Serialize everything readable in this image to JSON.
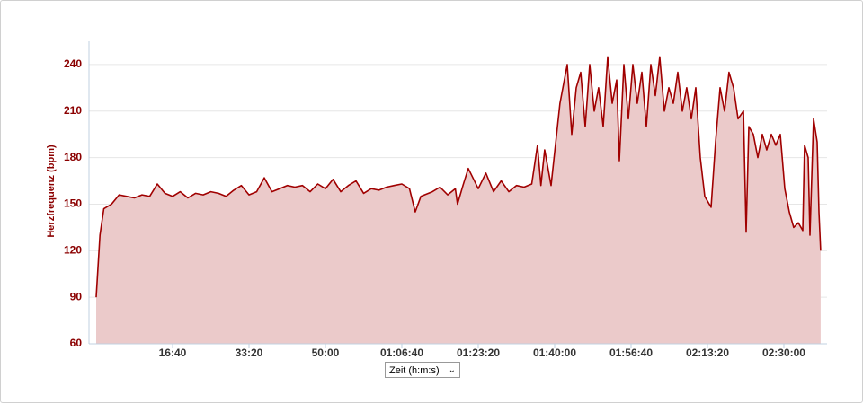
{
  "chart_data": {
    "type": "area",
    "ylabel": "Herzfrequenz (bpm)",
    "xlabel": "Zeit (h:m:s)",
    "color": "#a00000",
    "fill": "#ebcaca",
    "grid": true,
    "xlim": [
      -94,
      9565
    ],
    "ylim": [
      60,
      255
    ],
    "yticks": [
      60,
      90,
      120,
      150,
      180,
      210,
      240
    ],
    "xticks": [
      {
        "value": 1000,
        "label": "16:40"
      },
      {
        "value": 2000,
        "label": "33:20"
      },
      {
        "value": 3000,
        "label": "50:00"
      },
      {
        "value": 4000,
        "label": "01:06:40"
      },
      {
        "value": 5000,
        "label": "01:23:20"
      },
      {
        "value": 6000,
        "label": "01:40:00"
      },
      {
        "value": 7000,
        "label": "01:56:40"
      },
      {
        "value": 8000,
        "label": "02:13:20"
      },
      {
        "value": 9000,
        "label": "02:30:00"
      }
    ],
    "x": [
      0,
      50,
      100,
      200,
      300,
      400,
      500,
      600,
      700,
      800,
      900,
      1000,
      1100,
      1200,
      1300,
      1400,
      1500,
      1600,
      1700,
      1800,
      1900,
      2000,
      2100,
      2200,
      2300,
      2400,
      2500,
      2600,
      2700,
      2800,
      2900,
      3000,
      3100,
      3200,
      3300,
      3400,
      3500,
      3600,
      3700,
      3800,
      3900,
      4000,
      4100,
      4176,
      4250,
      4400,
      4500,
      4600,
      4700,
      4729,
      4800,
      4870,
      5000,
      5100,
      5200,
      5300,
      5400,
      5500,
      5600,
      5700,
      5776,
      5820,
      5870,
      5953,
      6070,
      6165,
      6224,
      6282,
      6341,
      6400,
      6459,
      6518,
      6576,
      6635,
      6694,
      6753,
      6812,
      6847,
      6906,
      6965,
      7024,
      7082,
      7141,
      7200,
      7259,
      7318,
      7376,
      7435,
      7494,
      7553,
      7612,
      7671,
      7729,
      7788,
      7847,
      7906,
      7965,
      8047,
      8106,
      8165,
      8224,
      8282,
      8341,
      8400,
      8471,
      8506,
      8541,
      8600,
      8659,
      8718,
      8776,
      8835,
      8894,
      8953,
      9012,
      9071,
      9129,
      9188,
      9247,
      9271,
      9318,
      9341,
      9388,
      9435,
      9459,
      9482
    ],
    "values": [
      90,
      130,
      147,
      150,
      156,
      155,
      154,
      156,
      155,
      163,
      157,
      155,
      158,
      154,
      157,
      156,
      158,
      157,
      155,
      159,
      162,
      156,
      158,
      167,
      158,
      160,
      162,
      161,
      162,
      158,
      163,
      160,
      166,
      158,
      162,
      165,
      157,
      160,
      159,
      161,
      162,
      163,
      160,
      145,
      155,
      158,
      161,
      156,
      160,
      150,
      162,
      173,
      160,
      170,
      158,
      165,
      158,
      162,
      161,
      163,
      188,
      162,
      185,
      162,
      215,
      240,
      195,
      225,
      235,
      200,
      240,
      210,
      225,
      200,
      245,
      215,
      230,
      178,
      240,
      205,
      240,
      215,
      235,
      200,
      240,
      220,
      245,
      210,
      225,
      215,
      235,
      210,
      225,
      205,
      225,
      180,
      155,
      148,
      190,
      225,
      210,
      235,
      225,
      205,
      210,
      132,
      200,
      195,
      180,
      195,
      185,
      195,
      188,
      195,
      160,
      145,
      135,
      138,
      133,
      188,
      180,
      130,
      205,
      190,
      145,
      120
    ]
  }
}
